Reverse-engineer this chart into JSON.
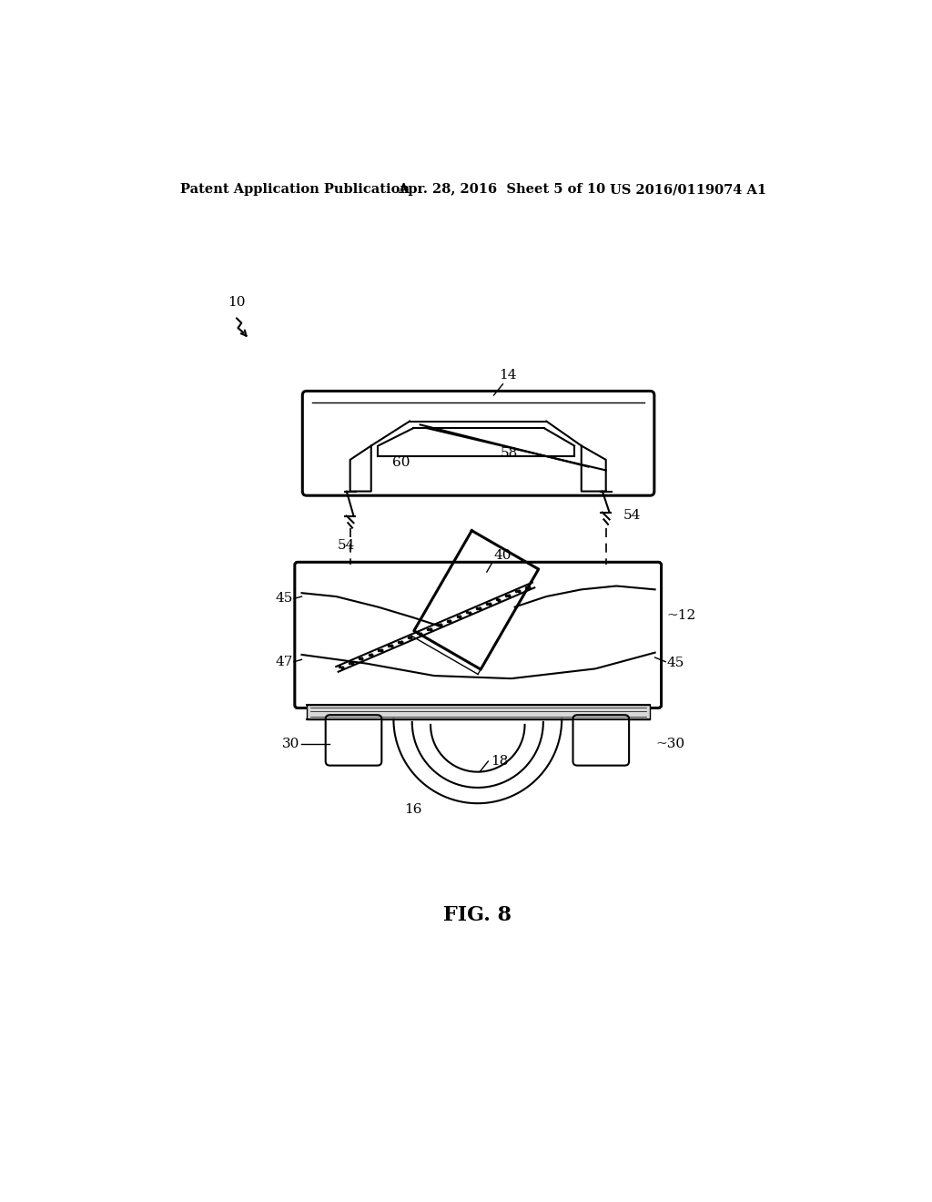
{
  "bg_color": "#ffffff",
  "line_color": "#000000",
  "header_left": "Patent Application Publication",
  "header_mid": "Apr. 28, 2016  Sheet 5 of 10",
  "header_right": "US 2016/0119074 A1",
  "fig_label": "FIG. 8",
  "label_10": "10",
  "label_14": "14",
  "label_12": "12",
  "label_16": "16",
  "label_18": "18",
  "label_30a": "30",
  "label_30b": "30",
  "label_40": "40",
  "label_45a": "45",
  "label_45b": "45",
  "label_47": "47",
  "label_54a": "54",
  "label_54b": "54",
  "label_58": "58",
  "label_60": "60"
}
